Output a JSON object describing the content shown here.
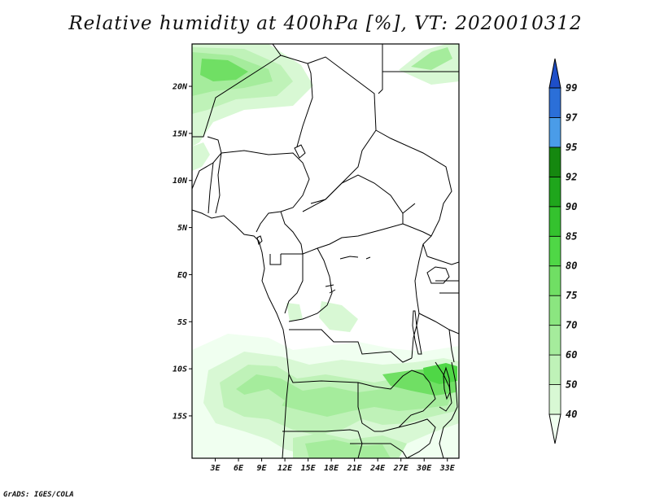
{
  "title": "Relative humidity at 400hPa [%], VT: 2020010312",
  "footer": "GrADS: IGES/COLA",
  "map": {
    "lon_ticks": [
      "3E",
      "6E",
      "9E",
      "12E",
      "15E",
      "18E",
      "21E",
      "24E",
      "27E",
      "30E",
      "33E"
    ],
    "lat_ticks": [
      "20N",
      "15N",
      "10N",
      "5N",
      "EQ",
      "5S",
      "10S",
      "15S"
    ],
    "lon_range": [
      0,
      34.5
    ],
    "lat_range": [
      -19.5,
      24.5
    ]
  },
  "colorbar": {
    "levels": [
      "40",
      "50",
      "60",
      "70",
      "75",
      "80",
      "85",
      "90",
      "92",
      "95",
      "97",
      "99"
    ],
    "colors": [
      "#f0fff0",
      "#d8f8d4",
      "#bff2b8",
      "#a5ec9c",
      "#8be680",
      "#70df64",
      "#4fd746",
      "#34c22e",
      "#1fa61c",
      "#15880f",
      "#4a9ce8",
      "#2b6fd8",
      "#1e4ec8"
    ]
  }
}
